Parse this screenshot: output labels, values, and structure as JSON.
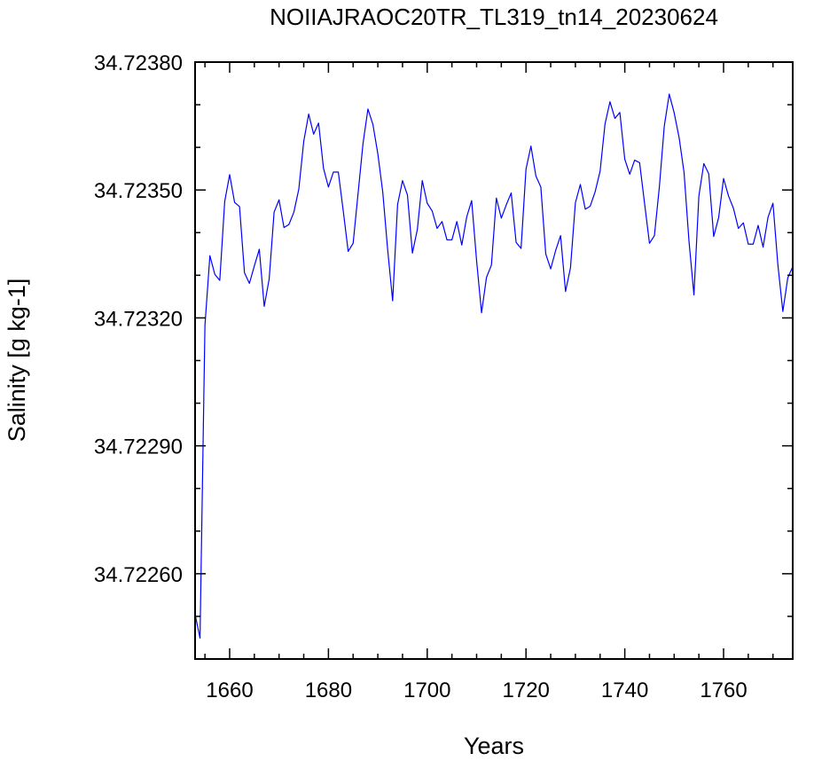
{
  "chart_data": {
    "type": "line",
    "title": "NOIIAJRAOC20TR_TL319_tn14_20230624",
    "xlabel": "Years",
    "ylabel": "Salinity [g kg-1]",
    "xlim": [
      1653,
      1774
    ],
    "ylim": [
      34.7224,
      34.7238
    ],
    "x_ticks": [
      "1660",
      "1680",
      "1700",
      "1720",
      "1740",
      "1760"
    ],
    "x_tick_values": [
      1660,
      1680,
      1700,
      1720,
      1740,
      1760
    ],
    "y_ticks": [
      "34.72260",
      "34.72290",
      "34.72320",
      "34.72350",
      "34.72380"
    ],
    "y_tick_values": [
      34.7226,
      34.7229,
      34.7232,
      34.7235,
      34.7238
    ],
    "grid": false,
    "series": [
      {
        "color": "#0000ff",
        "x_start": 1653,
        "x_step": 1,
        "values": [
          34.722505,
          34.722449,
          34.723183,
          34.723346,
          34.723302,
          34.723288,
          34.723473,
          34.723536,
          34.723471,
          34.723461,
          34.723306,
          34.723281,
          34.723322,
          34.723361,
          34.723227,
          34.723291,
          34.723448,
          34.723477,
          34.723412,
          34.723419,
          34.723448,
          34.723502,
          34.723614,
          34.723678,
          34.723631,
          34.723657,
          34.723551,
          34.723507,
          34.723542,
          34.723542,
          34.723451,
          34.723356,
          34.723375,
          34.723492,
          34.723609,
          34.72369,
          34.723654,
          34.723585,
          34.723495,
          34.723359,
          34.72324,
          34.723466,
          34.723522,
          34.723488,
          34.723352,
          34.723407,
          34.723522,
          34.723469,
          34.723451,
          34.72341,
          34.723426,
          34.723383,
          34.723383,
          34.723426,
          34.723371,
          34.723437,
          34.723475,
          34.723334,
          34.723212,
          34.723295,
          34.723324,
          34.723481,
          34.723434,
          34.723465,
          34.723493,
          34.723377,
          34.723363,
          34.723549,
          34.723603,
          34.723533,
          34.723507,
          34.72335,
          34.723315,
          34.723358,
          34.723393,
          34.723262,
          34.723317,
          34.72347,
          34.723513,
          34.723455,
          34.723462,
          34.723496,
          34.723544,
          34.723655,
          34.723707,
          34.723668,
          34.723682,
          34.723572,
          34.723537,
          34.72357,
          34.723564,
          34.723469,
          34.723375,
          34.723393,
          34.723507,
          34.72365,
          34.723725,
          34.723681,
          34.723623,
          34.723541,
          34.72338,
          34.723254,
          34.723486,
          34.723562,
          34.723538,
          34.723391,
          34.723435,
          34.723527,
          34.723486,
          34.723457,
          34.72341,
          34.723423,
          34.723373,
          34.723373,
          34.723417,
          34.723366,
          34.723436,
          34.723469,
          34.723324,
          34.723215,
          34.723294,
          34.72332
        ]
      }
    ]
  }
}
